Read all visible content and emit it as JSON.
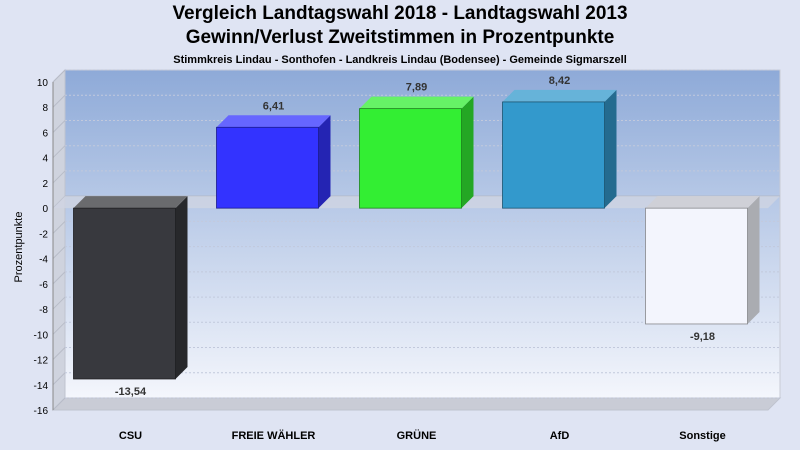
{
  "chart_data": {
    "type": "bar",
    "title": "Vergleich Landtagswahl 2018 - Landtagswahl 2013",
    "subtitle": "Gewinn/Verlust Zweitstimmen in Prozentpunkte",
    "subtitle2": "Stimmkreis Lindau - Sonthofen - Landkreis Lindau (Bodensee) - Gemeinde Sigmarszell",
    "ylabel": "Prozentpunkte",
    "categories": [
      "CSU",
      "FREIE WÄHLER",
      "GRÜNE",
      "AfD",
      "Sonstige"
    ],
    "values": [
      -13.54,
      6.41,
      7.89,
      8.42,
      -9.18
    ],
    "value_labels": [
      "-13,54",
      "6,41",
      "7,89",
      "8,42",
      "-9,18"
    ],
    "colors": [
      "#38393e",
      "#3333ff",
      "#33ee33",
      "#3399cc",
      "#f3f5fd"
    ],
    "ylim": [
      -16,
      10
    ],
    "yticks": [
      10,
      8,
      6,
      4,
      2,
      0,
      -2,
      -4,
      -6,
      -8,
      -10,
      -12,
      -14,
      -16
    ],
    "grid": true
  }
}
